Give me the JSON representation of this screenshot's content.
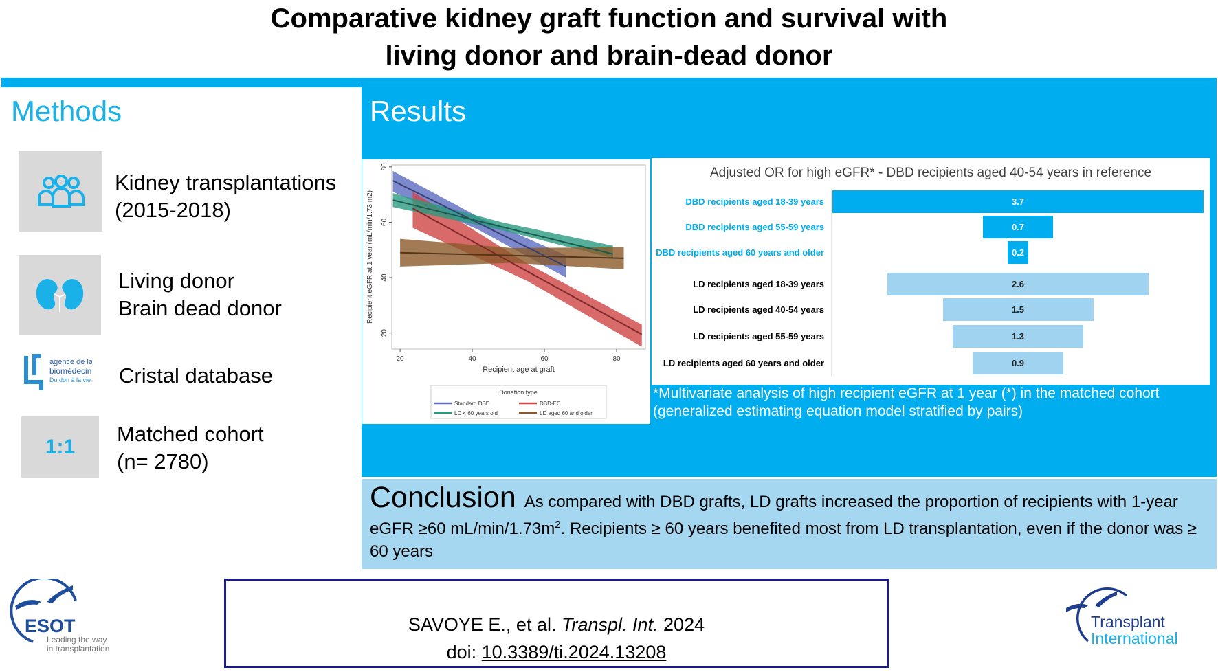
{
  "title": {
    "line1": "Comparative kidney graft function and survival with",
    "line2": "living donor and brain-dead donor"
  },
  "colors": {
    "accent": "#00aeef",
    "light_accent": "#a5d7f0",
    "ld_bar": "#9fd3ef",
    "navy": "#1b1b8f"
  },
  "methods": {
    "heading": "Methods",
    "items": [
      {
        "icon": "people-icon",
        "line1": "Kidney transplantations",
        "line2": "(2015-2018)"
      },
      {
        "icon": "kidneys-icon",
        "line1": "Living donor",
        "line2": "Brain dead donor"
      },
      {
        "icon": "agence-biomedecine-logo",
        "logo_text": "agence de la biomédecine Du don à la vie",
        "line1": "Cristal database"
      },
      {
        "icon": "ratio-badge",
        "badge": "1:1",
        "line1": "Matched cohort",
        "line2": "(n= 2780)"
      }
    ]
  },
  "results": {
    "heading": "Results",
    "footnote_line1": "*Multivariate  analysis  of high recipient eGFR at 1 year (*) in the matched cohort",
    "footnote_line2": "(generalized  estimating  equation model stratified by pairs)"
  },
  "chart_data": [
    {
      "type": "line",
      "xlabel": "Recipient age at graft",
      "ylabel": "Recipient eGFR at 1 year (mL/min/1.73 m2)",
      "xlim": [
        17.7,
        88
      ],
      "ylim": [
        14.2,
        80.7
      ],
      "xticks": [
        "20",
        "40",
        "60",
        "80"
      ],
      "yticks": [
        "20",
        "40",
        "60",
        "80"
      ],
      "legend_title": "Donation type",
      "legend_position": "bottom",
      "series": [
        {
          "name": "Standard DBD",
          "color": "#5b6bbf",
          "x": [
            18,
            66
          ],
          "y": [
            75,
            44
          ],
          "lower": [
            71,
            40
          ],
          "upper": [
            78.5,
            48
          ]
        },
        {
          "name": "DBD-EC",
          "color": "#d04545",
          "x": [
            23.5,
            87
          ],
          "y": [
            65,
            19.5
          ],
          "lower": [
            58,
            15
          ],
          "upper": [
            71,
            23
          ]
        },
        {
          "name": "LD < 60 years old",
          "color": "#2a9a80",
          "x": [
            18,
            79
          ],
          "y": [
            68,
            48.5
          ],
          "lower": [
            65.5,
            47
          ],
          "upper": [
            70.5,
            51.5
          ]
        },
        {
          "name": "LD aged 60 and older",
          "color": "#8b5a2b",
          "x": [
            20,
            82
          ],
          "y": [
            49,
            47
          ],
          "lower": [
            44,
            43
          ],
          "upper": [
            54,
            51
          ]
        }
      ]
    },
    {
      "type": "bar",
      "title": "Adjusted OR for high eGFR* - DBD recipients aged 40-54 years in reference",
      "categories": [
        "DBD recipients aged 18-39 years",
        "DBD recipients aged 55-59 years",
        "DBD recipients aged 60 years and older",
        "LD recipients aged 18-39 years",
        "LD recipients aged 40-54 years",
        "LD recipients aged 55-59 years",
        "LD recipients aged 60 years and older"
      ],
      "values": [
        3.7,
        0.7,
        0.2,
        2.6,
        1.5,
        1.3,
        0.9
      ],
      "labels": [
        "3.7",
        "0.7",
        "0.2",
        "2.6",
        "1.5",
        "1.3",
        "0.9"
      ],
      "groups": [
        "DBD",
        "DBD",
        "DBD",
        "LD",
        "LD",
        "LD",
        "LD"
      ]
    }
  ],
  "conclusion": {
    "heading": "Conclusion",
    "text1": "As compared with DBD grafts, LD grafts increased the proportion of recipients with  1-year eGFR ≥60 mL/min/1.73m",
    "sup": "2",
    "text2": ". Recipients ≥ 60 years benefited most from LD transplantation, even if the donor was ≥ 60 years"
  },
  "citation": {
    "authors": "SAVOYE E., et al. ",
    "journal": "Transpl. Int.",
    "year": " 2024",
    "doi_label": "doi: ",
    "doi": "10.3389/ti.2024.13208"
  },
  "logos": {
    "esot": "ESOT",
    "esot_tagline1": "Leading the way",
    "esot_tagline2": "in transplantation",
    "ti_line1": "Transplant",
    "ti_line2": "International"
  }
}
